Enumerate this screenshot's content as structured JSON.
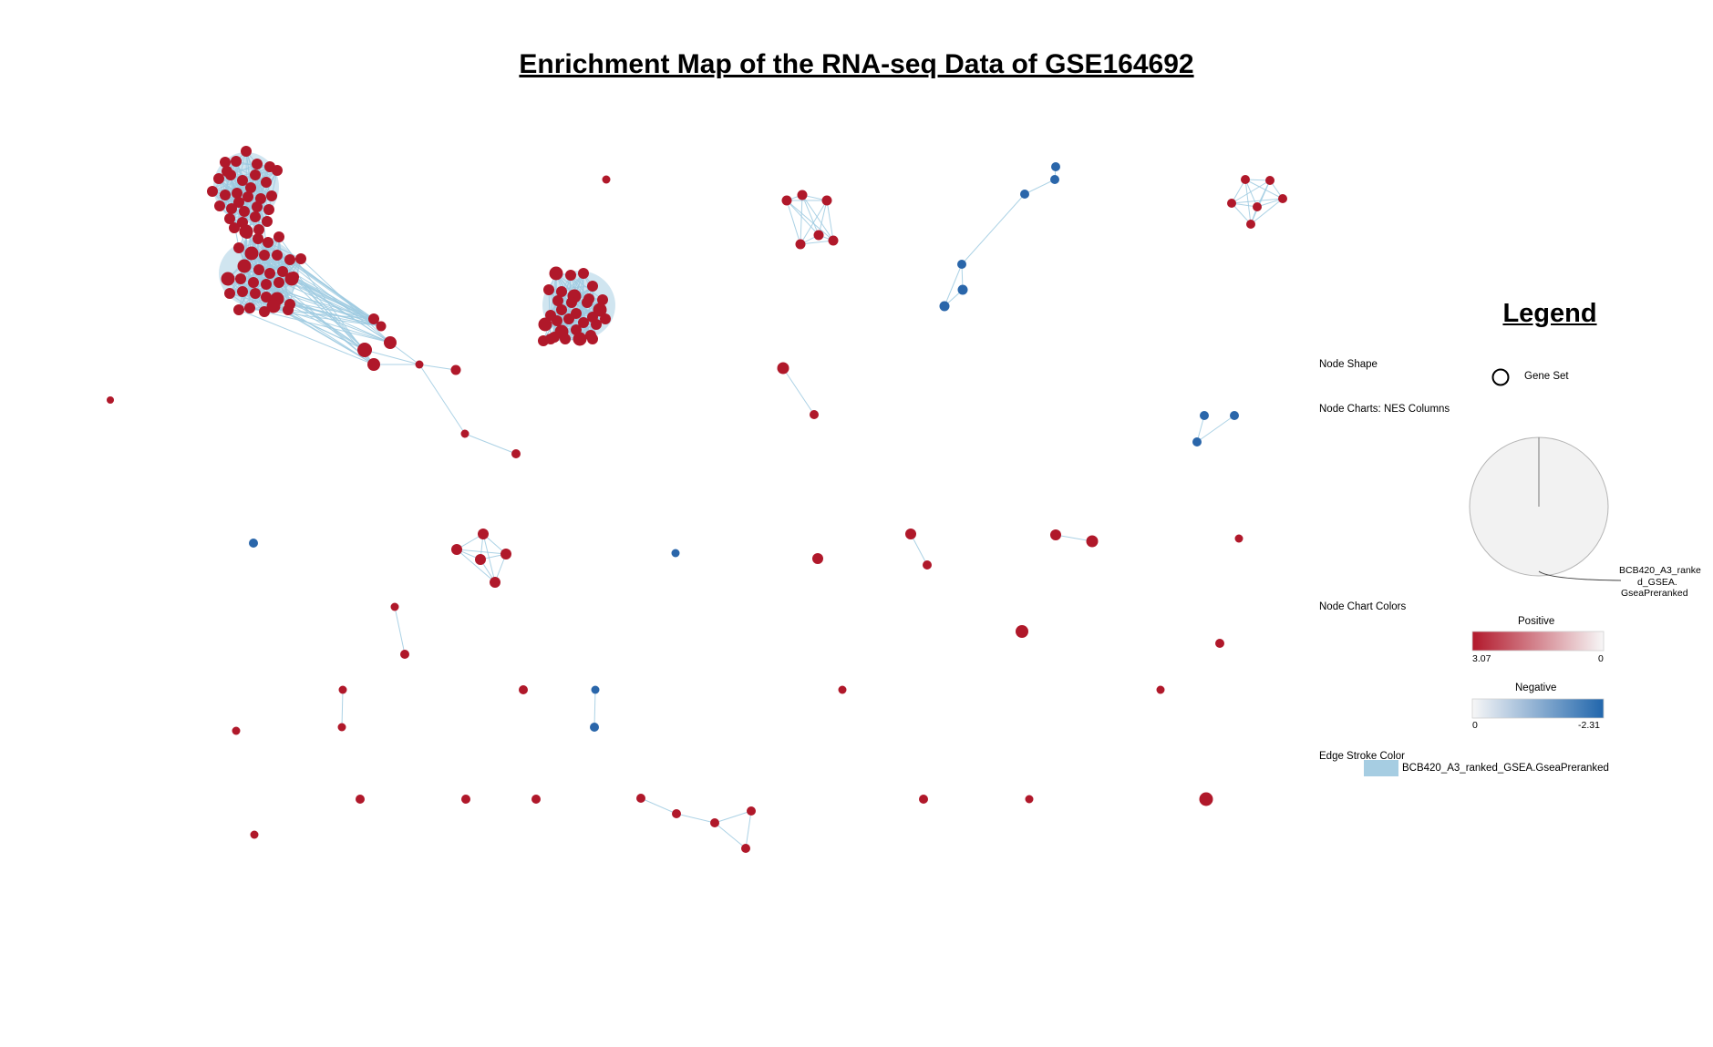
{
  "title": "Enrichment Map of the RNA-seq Data of GSE164692",
  "legend": {
    "title": "Legend",
    "node_shape_label": "Node Shape",
    "gene_set_label": "Gene Set",
    "node_charts_label": "Node Charts: NES Columns",
    "pie_label_line1": "BCB420_A3_ranke",
    "pie_label_line2": "d_GSEA.",
    "pie_label_line3": "GseaPreranked",
    "node_chart_colors_label": "Node Chart Colors",
    "positive_label": "Positive",
    "positive_max": "3.07",
    "positive_min": "0",
    "negative_label": "Negative",
    "negative_min": "0",
    "negative_max": "-2.31",
    "edge_stroke_label": "Edge Stroke Color",
    "edge_series_label": "BCB420_A3_ranked_GSEA.GseaPreranked"
  },
  "colors": {
    "positive_node": "#b0182a",
    "negative_node": "#2a66aa",
    "edge": "#9ecae1",
    "cluster_fill": "#a9cfe4",
    "edge_legend": "#a6cde2",
    "pie_fill": "#f2f2f2"
  }
}
